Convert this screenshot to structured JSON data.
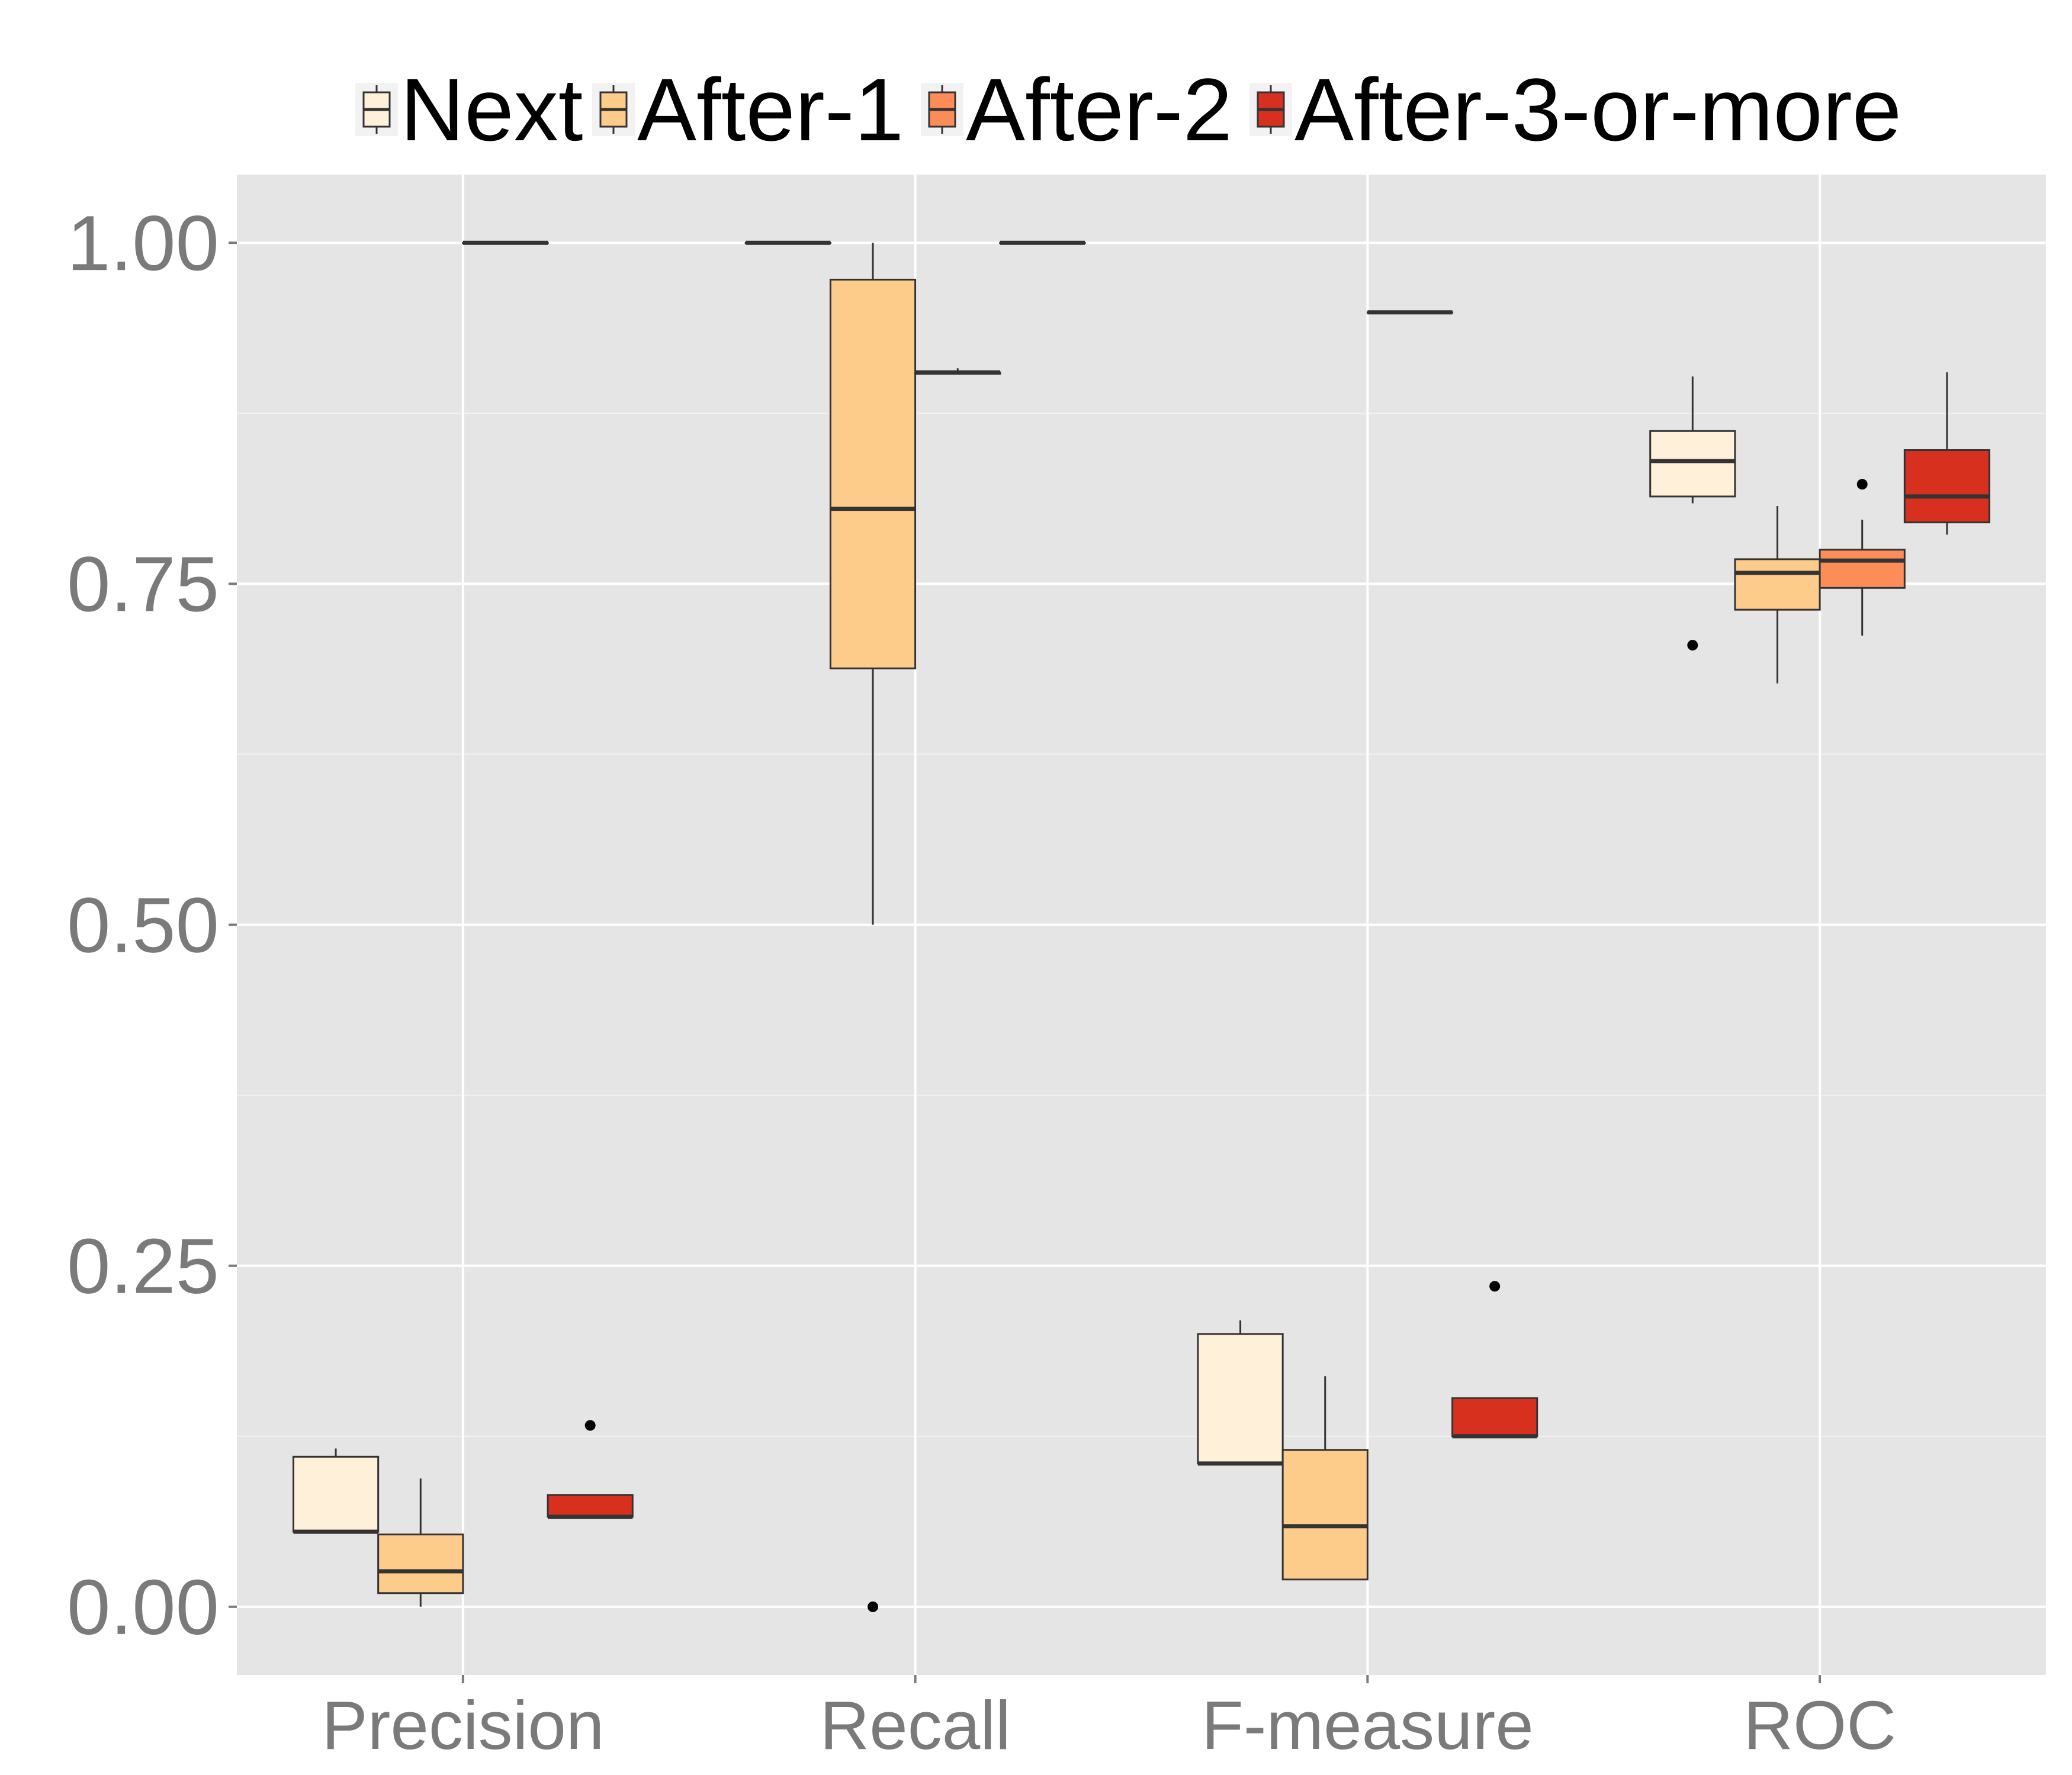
{
  "chart_data": {
    "type": "boxplot",
    "categories": [
      "Precision",
      "Recall",
      "F-measure",
      "ROC"
    ],
    "ylim": [
      -0.05,
      1.05
    ],
    "yticks": [
      {
        "value": 0.0,
        "label": "0.00"
      },
      {
        "value": 0.25,
        "label": "0.25"
      },
      {
        "value": 0.5,
        "label": "0.50"
      },
      {
        "value": 0.75,
        "label": "0.75"
      },
      {
        "value": 1.0,
        "label": "1.00"
      }
    ],
    "grid": true,
    "legend_position": "top",
    "series": [
      {
        "name": "Next",
        "color": "#fef0d9",
        "boxes": [
          {
            "lower_whisker": 0.055,
            "q1": 0.055,
            "median": 0.055,
            "q3": 0.11,
            "upper_whisker": 0.116,
            "outliers": []
          },
          {
            "lower_whisker": 1.0,
            "q1": 1.0,
            "median": 1.0,
            "q3": 1.0,
            "upper_whisker": 1.0,
            "outliers": []
          },
          {
            "lower_whisker": 0.105,
            "q1": 0.105,
            "median": 0.105,
            "q3": 0.2,
            "upper_whisker": 0.21,
            "outliers": []
          },
          {
            "lower_whisker": 0.809,
            "q1": 0.814,
            "median": 0.84,
            "q3": 0.862,
            "upper_whisker": 0.902,
            "outliers": [
              0.705
            ]
          }
        ]
      },
      {
        "name": "After-1",
        "color": "#fdcc8a",
        "boxes": [
          {
            "lower_whisker": 0.0,
            "q1": 0.01,
            "median": 0.026,
            "q3": 0.053,
            "upper_whisker": 0.094,
            "outliers": []
          },
          {
            "lower_whisker": 0.5,
            "q1": 0.688,
            "median": 0.805,
            "q3": 0.973,
            "upper_whisker": 1.0,
            "outliers": [
              0.0
            ]
          },
          {
            "lower_whisker": 0.02,
            "q1": 0.02,
            "median": 0.059,
            "q3": 0.115,
            "upper_whisker": 0.169,
            "outliers": []
          },
          {
            "lower_whisker": 0.677,
            "q1": 0.731,
            "median": 0.758,
            "q3": 0.768,
            "upper_whisker": 0.807,
            "outliers": []
          }
        ]
      },
      {
        "name": "After-2",
        "color": "#fc8d59",
        "boxes": [
          {
            "lower_whisker": 1.0,
            "q1": 1.0,
            "median": 1.0,
            "q3": 1.0,
            "upper_whisker": 1.0,
            "outliers": []
          },
          {
            "lower_whisker": 0.904,
            "q1": 0.904,
            "median": 0.905,
            "q3": 0.905,
            "upper_whisker": 0.908,
            "outliers": []
          },
          {
            "lower_whisker": 0.949,
            "q1": 0.949,
            "median": 0.949,
            "q3": 0.949,
            "upper_whisker": 0.949,
            "outliers": []
          },
          {
            "lower_whisker": 0.712,
            "q1": 0.747,
            "median": 0.767,
            "q3": 0.775,
            "upper_whisker": 0.797,
            "outliers": [
              0.823
            ]
          }
        ]
      },
      {
        "name": "After-3-or-more",
        "color": "#d7301f",
        "boxes": [
          {
            "lower_whisker": 0.066,
            "q1": 0.066,
            "median": 0.066,
            "q3": 0.082,
            "upper_whisker": 0.082,
            "outliers": [
              0.133
            ]
          },
          {
            "lower_whisker": 1.0,
            "q1": 1.0,
            "median": 1.0,
            "q3": 1.0,
            "upper_whisker": 1.0,
            "outliers": []
          },
          {
            "lower_whisker": 0.125,
            "q1": 0.125,
            "median": 0.125,
            "q3": 0.153,
            "upper_whisker": 0.153,
            "outliers": [
              0.235
            ]
          },
          {
            "lower_whisker": 0.786,
            "q1": 0.795,
            "median": 0.814,
            "q3": 0.848,
            "upper_whisker": 0.905,
            "outliers": []
          }
        ]
      }
    ]
  }
}
